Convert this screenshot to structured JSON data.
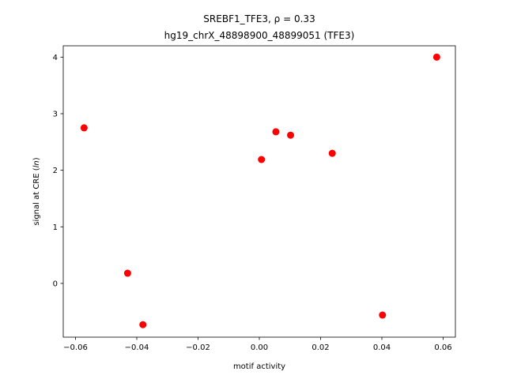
{
  "chart_data": {
    "type": "scatter",
    "title_line1": "SREBF1_TFE3, ρ = 0.33",
    "title_line2": "hg19_chrX_48898900_48899051 (TFE3)",
    "xlabel": "motif activity",
    "ylabel": "signal at CRE (ln)",
    "xlim": [
      -0.064,
      0.064
    ],
    "ylim": [
      -0.95,
      4.2
    ],
    "xticks": [
      -0.06,
      -0.04,
      -0.02,
      0.0,
      0.02,
      0.04,
      0.06
    ],
    "xtick_labels": [
      "−0.06",
      "−0.04",
      "−0.02",
      "0.00",
      "0.02",
      "0.04",
      "0.06"
    ],
    "yticks": [
      0,
      1,
      2,
      3,
      4
    ],
    "ytick_labels": [
      "0",
      "1",
      "2",
      "3",
      "4"
    ],
    "grid": false,
    "marker_color": "#ff0000",
    "points": [
      {
        "x": -0.0572,
        "y": 2.75
      },
      {
        "x": -0.043,
        "y": 0.18
      },
      {
        "x": -0.038,
        "y": -0.73
      },
      {
        "x": 0.0007,
        "y": 2.19
      },
      {
        "x": 0.0054,
        "y": 2.68
      },
      {
        "x": 0.0102,
        "y": 2.62
      },
      {
        "x": 0.0238,
        "y": 2.3
      },
      {
        "x": 0.0402,
        "y": -0.56
      },
      {
        "x": 0.0579,
        "y": 4.0
      }
    ]
  }
}
